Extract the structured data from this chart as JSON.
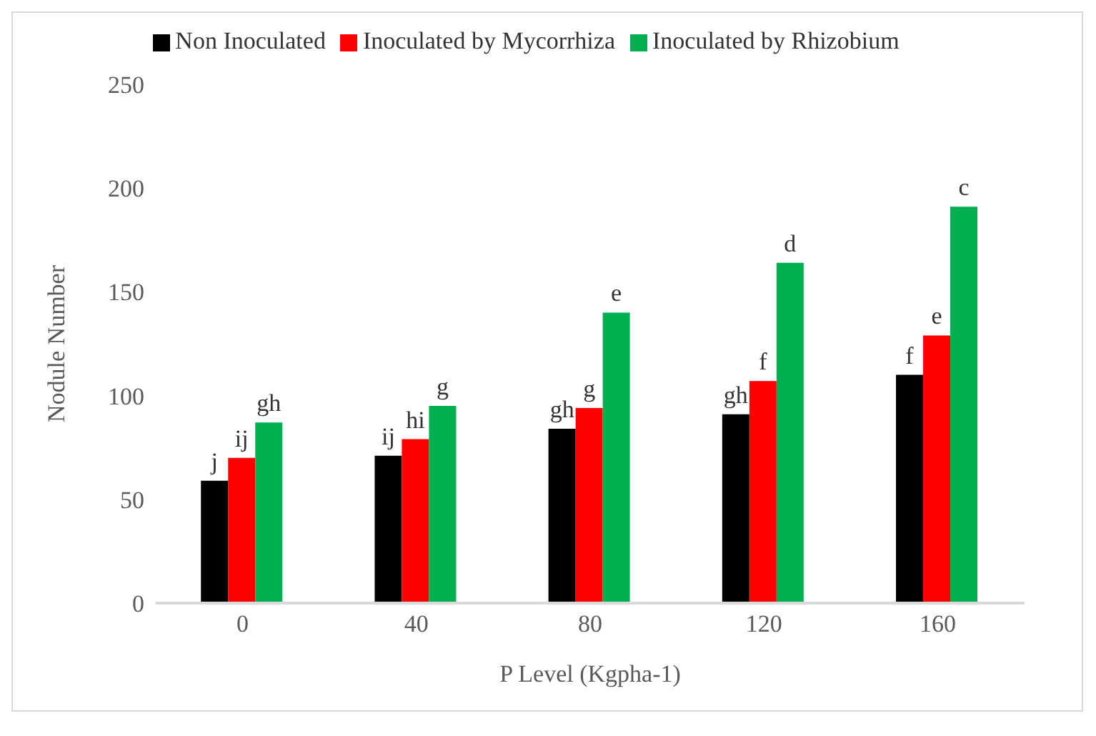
{
  "chart_data": {
    "type": "bar",
    "categories": [
      "0",
      "40",
      "80",
      "120",
      "160"
    ],
    "xlabel": "P Level (Kgpha-1)",
    "ylabel": "Nodule Number",
    "ylim": [
      0,
      250
    ],
    "yticks": [
      0,
      50,
      100,
      150,
      200,
      250
    ],
    "grid": false,
    "legend": "top",
    "series": [
      {
        "name": "Non Inoculated",
        "color": "#000000",
        "values": [
          59,
          71,
          84,
          91,
          110
        ],
        "value_labels": [
          "j",
          "ij",
          "gh",
          "gh",
          "f"
        ]
      },
      {
        "name": "Inoculated by Mycorrhiza",
        "color": "#ff0000",
        "values": [
          70,
          79,
          94,
          107,
          129
        ],
        "value_labels": [
          "ij",
          "hi",
          "g",
          "f",
          "e"
        ]
      },
      {
        "name": "Inoculated by Rhizobium",
        "color": "#00b050",
        "values": [
          87,
          95,
          140,
          164,
          191
        ],
        "value_labels": [
          "gh",
          "g",
          "e",
          "d",
          "c"
        ]
      }
    ]
  }
}
